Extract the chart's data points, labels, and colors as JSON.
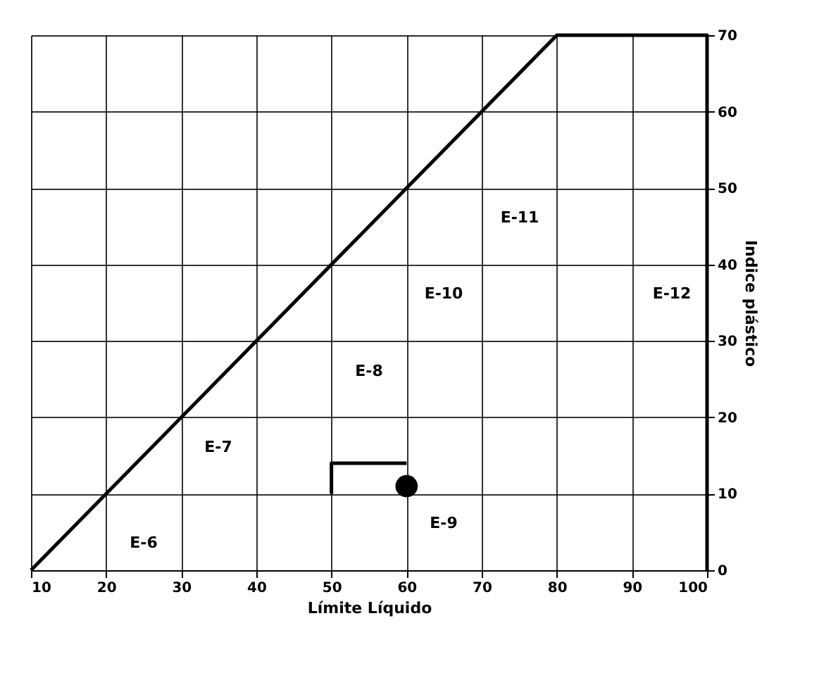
{
  "chart_data": {
    "type": "line",
    "xlabel": "Límite Líquido",
    "ylabel": "Indice plástico",
    "xlim": [
      10,
      100
    ],
    "ylim": [
      0,
      70
    ],
    "xticks": [
      10,
      20,
      30,
      40,
      50,
      60,
      70,
      80,
      90,
      100
    ],
    "yticks": [
      0,
      10,
      20,
      30,
      40,
      50,
      60,
      70
    ],
    "grid": true,
    "line_style": "solid",
    "series": [
      {
        "color": "#000000",
        "x": [
          10,
          80,
          100,
          100
        ],
        "values": [
          0,
          70,
          70,
          0
        ]
      },
      {
        "color": "#000000",
        "x": [
          50,
          50,
          60
        ],
        "values": [
          10,
          14,
          14
        ]
      },
      {
        "type": "scatter",
        "marker": "circle",
        "color": "#000000",
        "x": [
          60
        ],
        "values": [
          11
        ]
      }
    ],
    "annotations": [
      "E-6",
      "E-7",
      "E-8",
      "E-9",
      "E-10",
      "E-11",
      "E-12"
    ]
  }
}
